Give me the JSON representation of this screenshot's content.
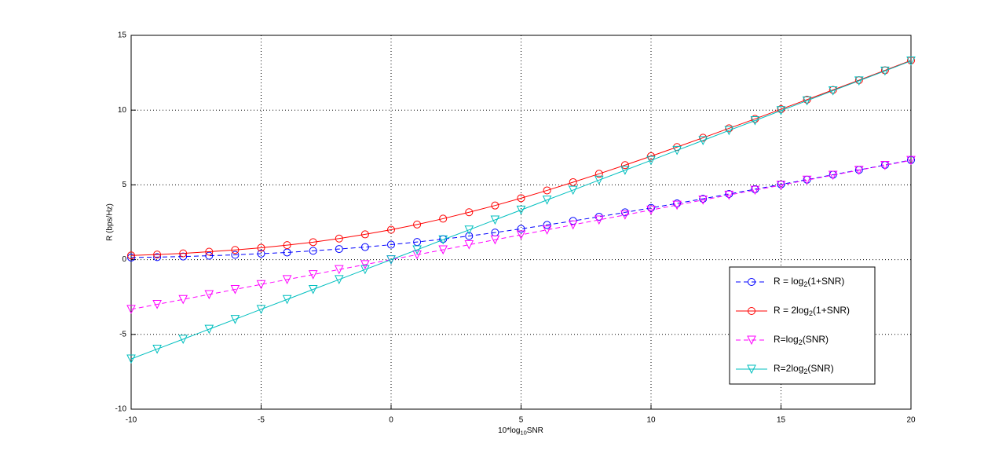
{
  "chart_data": {
    "type": "line",
    "x_label": "10*log10SNR",
    "y_label": "R (bps/Hz)",
    "x": [
      -10,
      -9,
      -8,
      -7,
      -6,
      -5,
      -4,
      -3,
      -2,
      -1,
      0,
      1,
      2,
      3,
      4,
      5,
      6,
      7,
      8,
      9,
      10,
      11,
      12,
      13,
      14,
      15,
      16,
      17,
      18,
      19,
      20
    ],
    "xlim": [
      -10,
      20
    ],
    "xticks": [
      -10,
      -5,
      0,
      5,
      10,
      15,
      20
    ],
    "ylim": [
      -10,
      15
    ],
    "yticks": [
      -10,
      -5,
      0,
      5,
      10,
      15
    ],
    "grid": true,
    "legend_position": "lower right",
    "series": [
      {
        "name": "R = log2(1+SNR)",
        "color": "#0000ff",
        "linestyle": "dashed",
        "marker": "circle",
        "values": [
          0.14,
          0.17,
          0.21,
          0.26,
          0.32,
          0.4,
          0.48,
          0.59,
          0.71,
          0.84,
          1.0,
          1.18,
          1.37,
          1.58,
          1.81,
          2.06,
          2.32,
          2.59,
          2.87,
          3.16,
          3.46,
          3.76,
          4.07,
          4.39,
          4.71,
          5.03,
          5.35,
          5.68,
          6.0,
          6.33,
          6.66
        ]
      },
      {
        "name": "R = 2log2(1+SNR)",
        "color": "#ff0000",
        "linestyle": "solid",
        "marker": "circle",
        "values": [
          0.28,
          0.34,
          0.42,
          0.53,
          0.65,
          0.79,
          0.97,
          1.17,
          1.41,
          1.69,
          2.0,
          2.35,
          2.74,
          3.17,
          3.62,
          4.11,
          4.63,
          5.18,
          5.74,
          6.32,
          6.92,
          7.53,
          8.15,
          8.78,
          9.41,
          10.06,
          10.7,
          11.35,
          12.0,
          12.66,
          13.32
        ]
      },
      {
        "name": "R=log2(SNR)",
        "color": "#ff00ff",
        "linestyle": "dashed",
        "marker": "triangle-down",
        "values": [
          -3.32,
          -2.99,
          -2.66,
          -2.33,
          -1.99,
          -1.66,
          -1.33,
          -1.0,
          -0.66,
          -0.33,
          0,
          0.33,
          0.66,
          1.0,
          1.33,
          1.66,
          1.99,
          2.33,
          2.66,
          2.99,
          3.32,
          3.65,
          3.99,
          4.32,
          4.65,
          4.98,
          5.32,
          5.65,
          5.98,
          6.31,
          6.64
        ]
      },
      {
        "name": "R=2log2(SNR)",
        "color": "#00bfbf",
        "linestyle": "solid",
        "marker": "triangle-down",
        "values": [
          -6.64,
          -5.98,
          -5.32,
          -4.65,
          -3.99,
          -3.32,
          -2.66,
          -1.99,
          -1.33,
          -0.66,
          0,
          0.66,
          1.33,
          1.99,
          2.66,
          3.32,
          3.99,
          4.65,
          5.32,
          5.98,
          6.64,
          7.31,
          7.97,
          8.64,
          9.3,
          9.97,
          10.63,
          11.3,
          11.96,
          12.62,
          13.29
        ]
      }
    ]
  }
}
